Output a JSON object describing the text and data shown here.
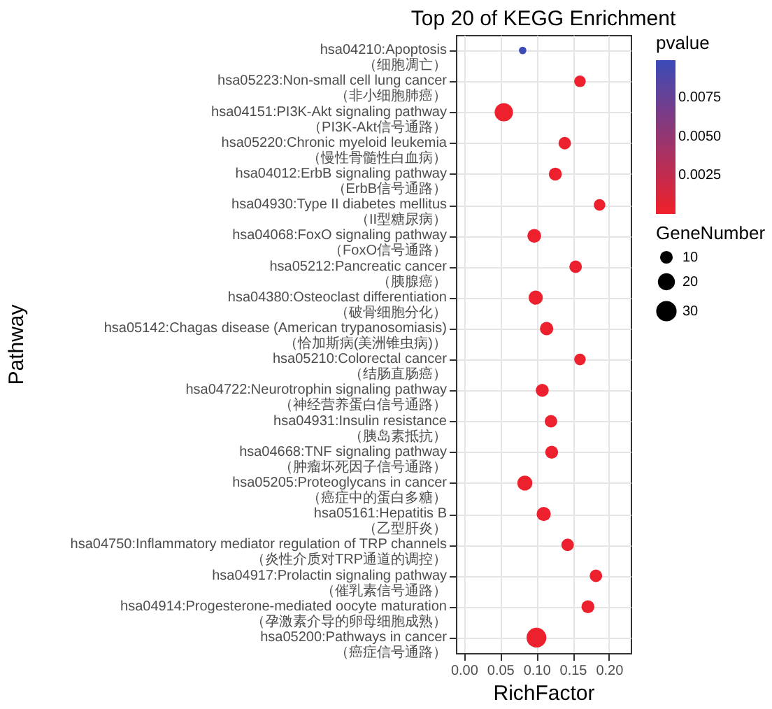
{
  "chart_data": {
    "type": "bubble",
    "orientation": "horizontal",
    "title": "Top 20 of KEGG Enrichment",
    "xlabel": "RichFactor",
    "ylabel": "Pathway",
    "legend_title": "GeneNumber",
    "clabel": "pvalue",
    "categories": [
      "hsa04210:Apoptosis\n（细胞凋亡）",
      "hsa05223:Non-small cell lung cancer\n（非小细胞肺癌）",
      "hsa04151:PI3K-Akt signaling pathway\n（PI3K-Akt信号通路）",
      "hsa05220:Chronic myeloid leukemia\n（慢性骨髓性白血病）",
      "hsa04012:ErbB signaling pathway\n（ErbB信号通路）",
      "hsa04930:Type II diabetes mellitus\n（II型糖尿病）",
      "hsa04068:FoxO signaling pathway\n（FoxO信号通路）",
      "hsa05212:Pancreatic cancer\n（胰腺癌）",
      "hsa04380:Osteoclast differentiation\n（破骨细胞分化）",
      "hsa05142:Chagas disease (American trypanosomiasis)\n（恰加斯病(美洲锥虫病)）",
      "hsa05210:Colorectal cancer\n（结肠直肠癌）",
      "hsa04722:Neurotrophin signaling pathway\n（神经营养蛋白信号通路）",
      "hsa04931:Insulin resistance\n（胰岛素抵抗）",
      "hsa04668:TNF signaling pathway\n（肿瘤坏死因子信号通路）",
      "hsa05205:Proteoglycans in cancer\n（癌症中的蛋白多糖）",
      "hsa05161:Hepatitis B\n（乙型肝炎）",
      "hsa04750:Inflammatory mediator regulation of TRP channels\n（炎性介质对TRP通道的调控）",
      "hsa04917:Prolactin signaling pathway\n（催乳素信号通路）",
      "hsa04914:Progesterone-mediated oocyte maturation\n（孕激素介导的卵母细胞成熟）",
      "hsa05200:Pathways in cancer\n（癌症信号通路）"
    ],
    "values": [
      0.081,
      0.16,
      0.055,
      0.139,
      0.126,
      0.187,
      0.097,
      0.154,
      0.099,
      0.114,
      0.16,
      0.108,
      0.12,
      0.121,
      0.084,
      0.11,
      0.143,
      0.182,
      0.171,
      0.1
    ],
    "sizes": [
      5,
      12,
      30,
      14,
      15,
      12,
      17,
      14,
      18,
      16,
      12,
      15,
      14,
      15,
      20,
      18,
      14,
      14,
      15,
      35
    ],
    "cvalues": [
      0.0098,
      0.0002,
      0.0002,
      0.0002,
      0.0002,
      0.0002,
      0.0002,
      0.0002,
      0.0002,
      0.0002,
      0.0002,
      0.0002,
      0.0002,
      0.0002,
      0.0002,
      0.0002,
      0.0002,
      0.0002,
      0.0002,
      0.0002
    ],
    "size_legend": [
      10,
      20,
      30
    ],
    "clim": [
      0,
      0.0099
    ],
    "cticks": [
      {
        "value": 0.0025,
        "label": "0.0025"
      },
      {
        "value": 0.005,
        "label": "0.0050"
      },
      {
        "value": 0.0075,
        "label": "0.0075"
      }
    ],
    "xlim": [
      -0.011,
      0.23
    ],
    "xticks": [
      {
        "value": 0,
        "label": "0.00"
      },
      0.05,
      {
        "value": 0.1,
        "label": "0.10"
      },
      0.15,
      {
        "value": 0.2,
        "label": "0.20"
      }
    ],
    "grid": true
  }
}
